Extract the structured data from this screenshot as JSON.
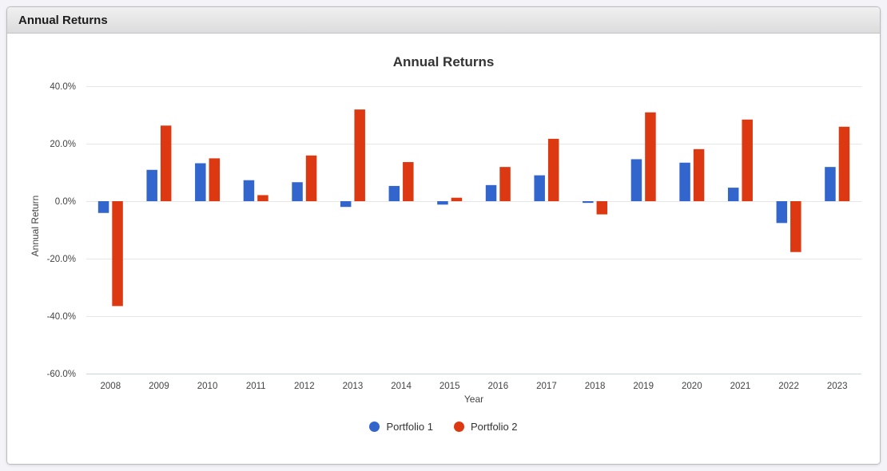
{
  "window": {
    "header_title": "Annual Returns"
  },
  "chart_data": {
    "type": "bar",
    "title": "Annual Returns",
    "xlabel": "Year",
    "ylabel": "Annual Return",
    "categories": [
      "2008",
      "2009",
      "2010",
      "2011",
      "2012",
      "2013",
      "2014",
      "2015",
      "2016",
      "2017",
      "2018",
      "2019",
      "2020",
      "2021",
      "2022",
      "2023"
    ],
    "series": [
      {
        "name": "Portfolio 1",
        "color": "#3366cc",
        "values": [
          -4.1,
          10.9,
          13.2,
          7.3,
          6.6,
          -2.0,
          5.3,
          -1.2,
          5.6,
          9.0,
          -0.6,
          14.6,
          13.4,
          4.7,
          -7.6,
          11.9
        ]
      },
      {
        "name": "Portfolio 2",
        "color": "#dc3912",
        "values": [
          -36.5,
          26.3,
          14.9,
          2.1,
          15.9,
          31.9,
          13.6,
          1.2,
          11.9,
          21.7,
          -4.6,
          30.9,
          18.1,
          28.4,
          -17.7,
          25.9
        ]
      }
    ],
    "y_ticks": [
      {
        "value": 40,
        "label": "40.0%"
      },
      {
        "value": 20,
        "label": "20.0%"
      },
      {
        "value": 0,
        "label": "0.0%"
      },
      {
        "value": -20,
        "label": "-20.0%"
      },
      {
        "value": -40,
        "label": "-40.0%"
      },
      {
        "value": -60,
        "label": "-60.0%"
      }
    ],
    "ylim": [
      -60,
      45
    ],
    "grid": true,
    "legend_position": "bottom"
  },
  "colors": {
    "grid_line": "#e6e6e6",
    "baseline": "#ccd6e0",
    "series1": "#3366cc",
    "series2": "#dc3912",
    "tick_text": "#444444",
    "title_text": "#333333"
  }
}
